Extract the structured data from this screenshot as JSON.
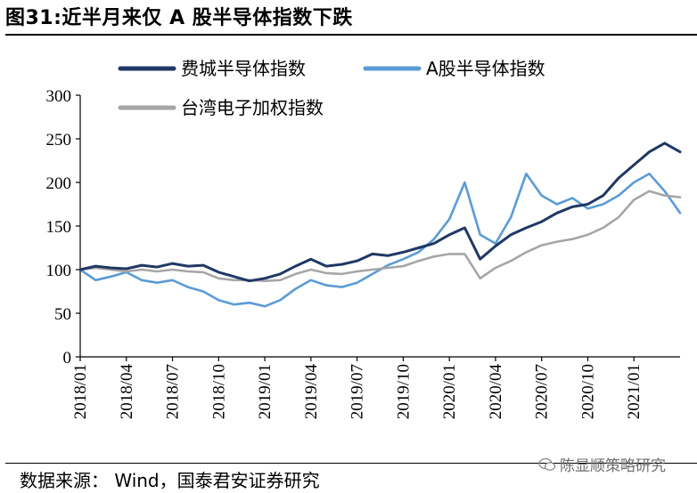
{
  "header": {
    "title": "图31:近半月来仅 A 股半导体指数下跌"
  },
  "footer": {
    "source": "数据来源： Wind，国泰君安证券研究",
    "watermark": "陈显顺策略研究"
  },
  "chart_data": {
    "type": "line",
    "title": "",
    "xlabel": "",
    "ylabel": "",
    "ylim": [
      0,
      300
    ],
    "yticks": [
      0,
      50,
      100,
      150,
      200,
      250,
      300
    ],
    "x_tick_labels": [
      "2018/01",
      "2018/04",
      "2018/07",
      "2018/10",
      "2019/01",
      "2019/04",
      "2019/07",
      "2019/10",
      "2020/01",
      "2020/04",
      "2020/07",
      "2020/10",
      "2021/01"
    ],
    "grid": false,
    "legend_position": "top",
    "x": [
      "2018/01",
      "2018/02",
      "2018/03",
      "2018/04",
      "2018/05",
      "2018/06",
      "2018/07",
      "2018/08",
      "2018/09",
      "2018/10",
      "2018/11",
      "2018/12",
      "2019/01",
      "2019/02",
      "2019/03",
      "2019/04",
      "2019/05",
      "2019/06",
      "2019/07",
      "2019/08",
      "2019/09",
      "2019/10",
      "2019/11",
      "2019/12",
      "2020/01",
      "2020/02",
      "2020/03",
      "2020/04",
      "2020/05",
      "2020/06",
      "2020/07",
      "2020/08",
      "2020/09",
      "2020/10",
      "2020/11",
      "2020/12",
      "2021/01",
      "2021/02",
      "2021/03",
      "2021/04"
    ],
    "series": [
      {
        "name": "费城半导体指数",
        "color": "#1f3864",
        "values": [
          100,
          104,
          102,
          101,
          105,
          103,
          107,
          104,
          105,
          97,
          92,
          87,
          90,
          95,
          104,
          112,
          104,
          106,
          110,
          118,
          116,
          120,
          125,
          130,
          140,
          148,
          112,
          127,
          140,
          148,
          155,
          165,
          172,
          175,
          185,
          205,
          220,
          235,
          245,
          235
        ]
      },
      {
        "name": "A股半导体指数",
        "color": "#5b9bd5",
        "values": [
          100,
          88,
          92,
          97,
          88,
          85,
          88,
          80,
          75,
          65,
          60,
          62,
          58,
          65,
          78,
          88,
          82,
          80,
          85,
          95,
          105,
          112,
          120,
          135,
          158,
          200,
          140,
          130,
          160,
          210,
          185,
          175,
          182,
          170,
          175,
          185,
          200,
          210,
          190,
          165
        ]
      },
      {
        "name": "台湾电子加权指数",
        "color": "#a6a6a6",
        "values": [
          100,
          102,
          100,
          98,
          100,
          98,
          100,
          98,
          97,
          90,
          88,
          88,
          87,
          88,
          95,
          100,
          96,
          95,
          98,
          100,
          102,
          104,
          110,
          115,
          118,
          118,
          90,
          102,
          110,
          120,
          128,
          132,
          135,
          140,
          148,
          160,
          180,
          190,
          185,
          183
        ]
      }
    ]
  }
}
